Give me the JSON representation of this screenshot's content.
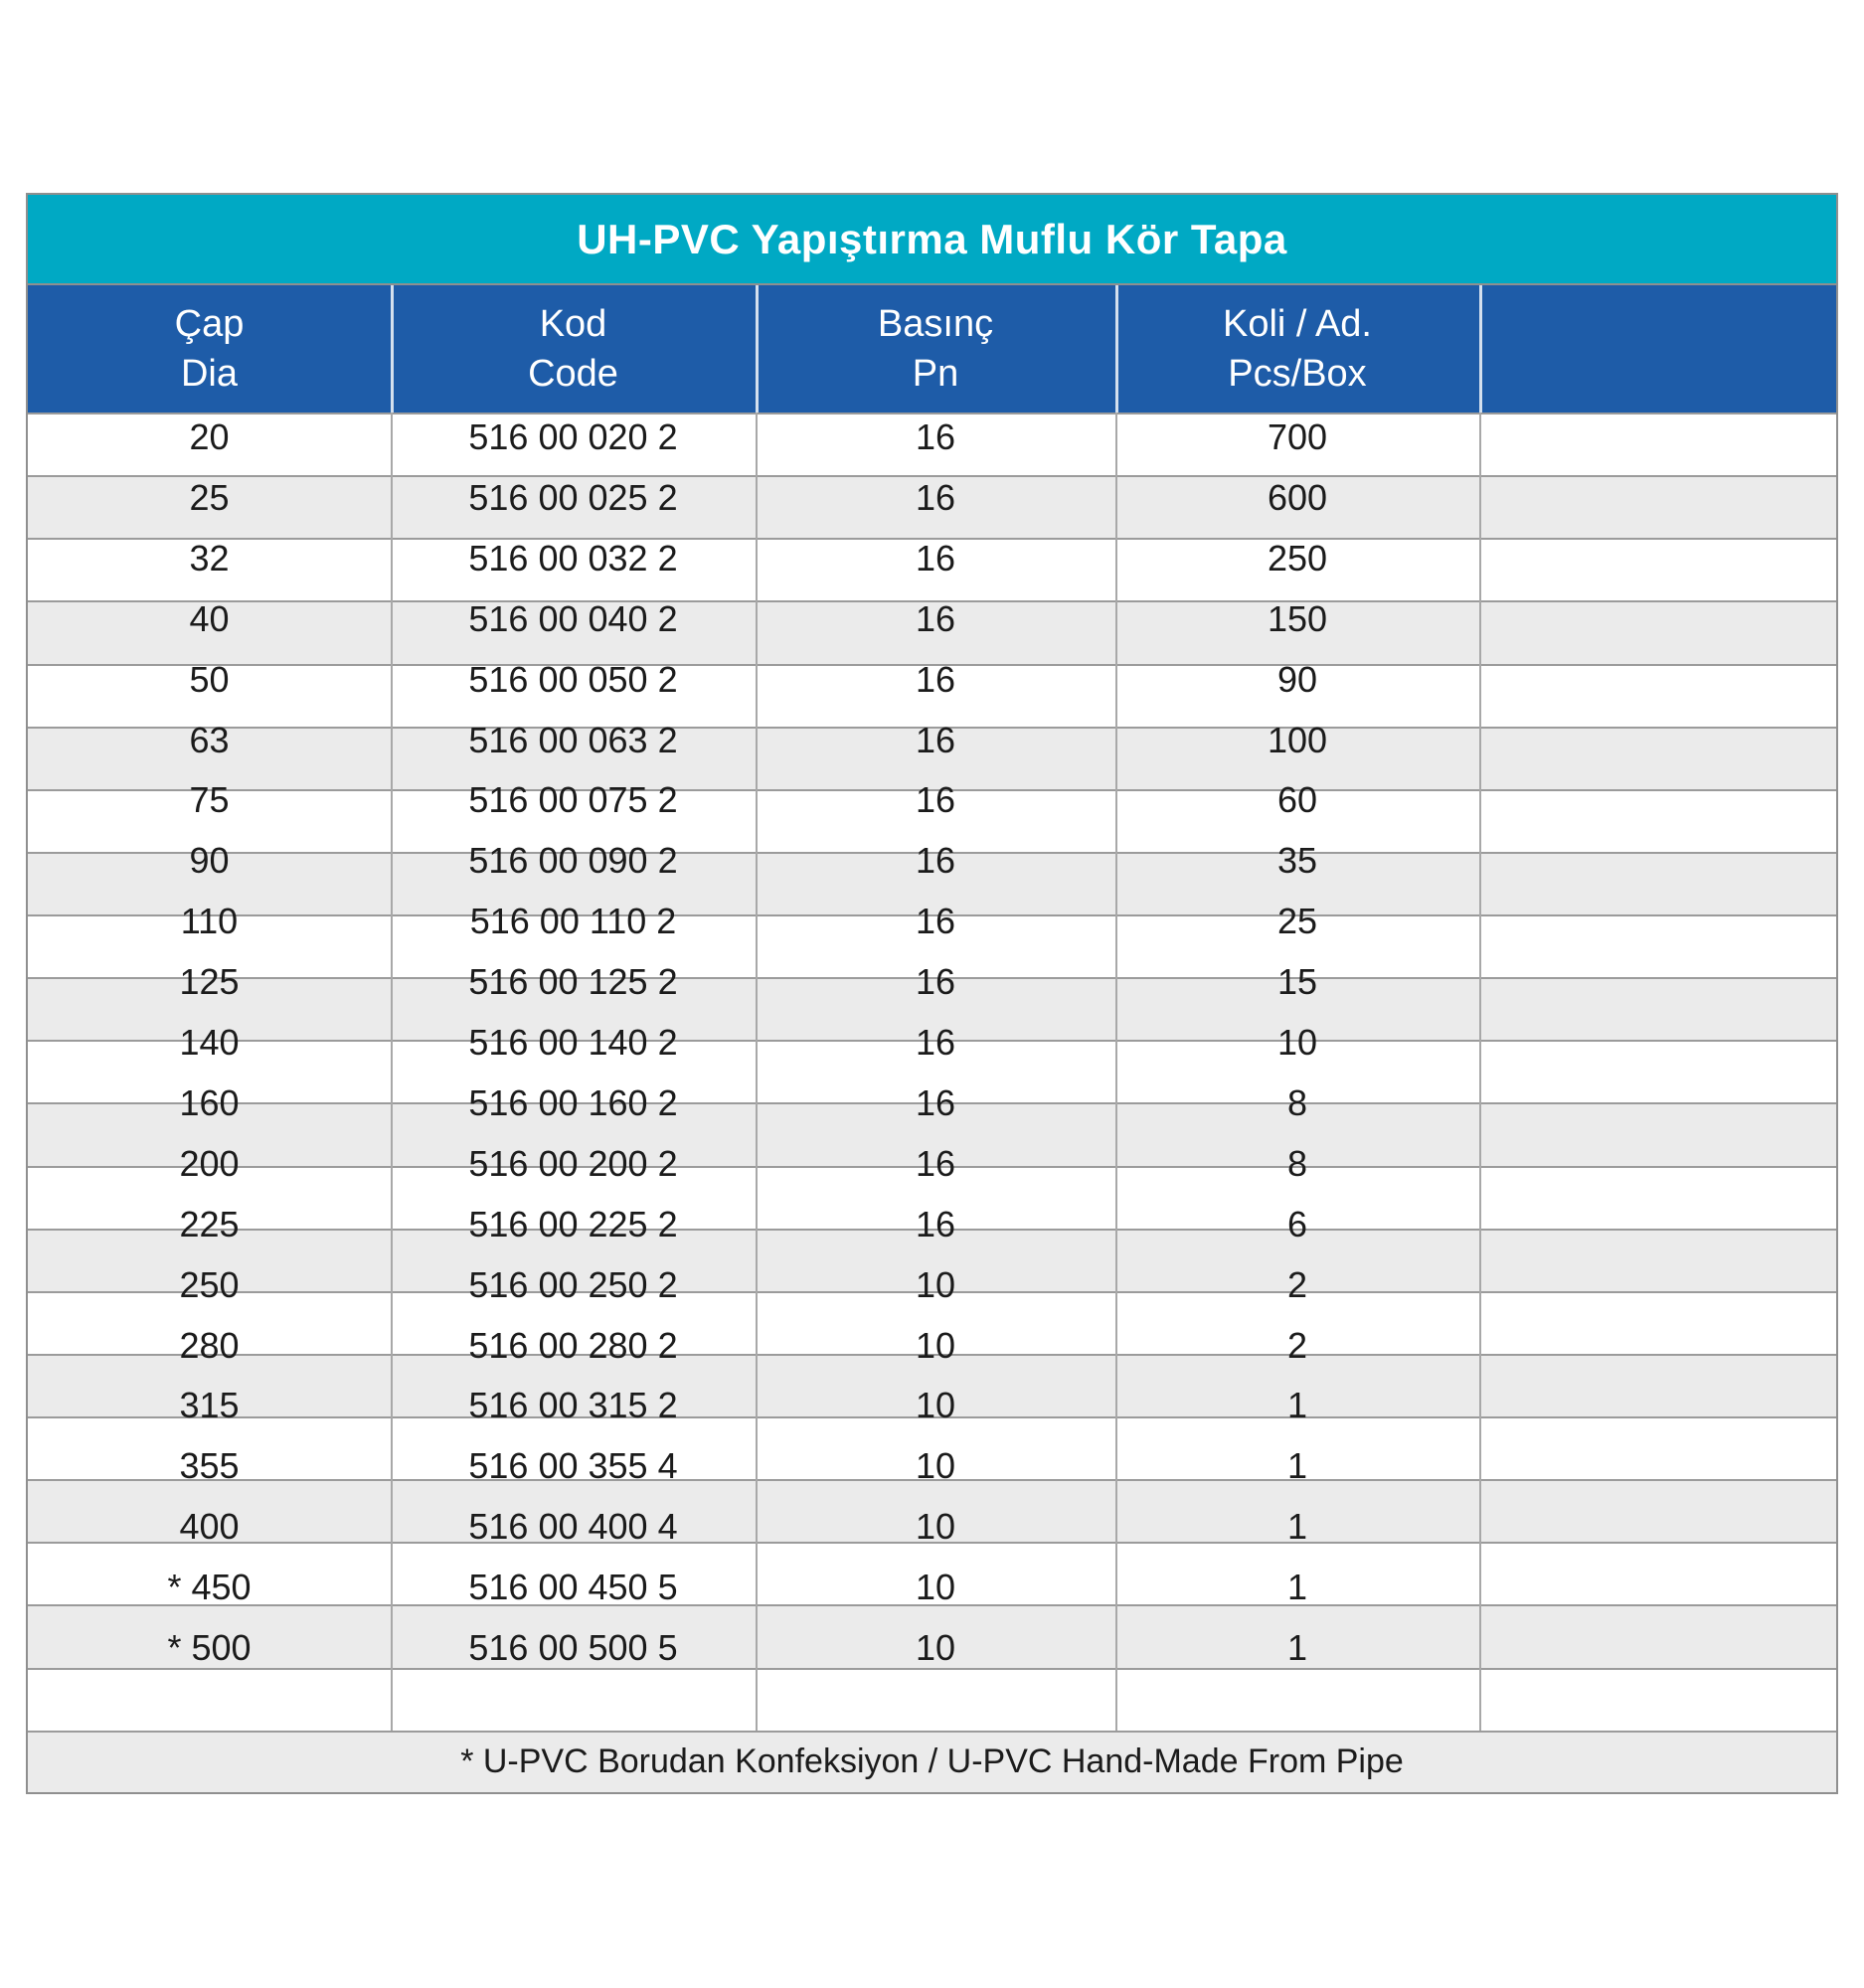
{
  "title": "UH-PVC Yapıştırma Muflu Kör Tapa",
  "columns": [
    {
      "tr": "Çap",
      "en": "Dia"
    },
    {
      "tr": "Kod",
      "en": "Code"
    },
    {
      "tr": "Basınç",
      "en": "Pn"
    },
    {
      "tr": "Koli / Ad.",
      "en": "Pcs/Box"
    },
    {
      "tr": "",
      "en": ""
    }
  ],
  "rows": [
    {
      "dia": "20",
      "code": "516 00 020 2",
      "pn": "16",
      "box": "700"
    },
    {
      "dia": "25",
      "code": "516 00 025 2",
      "pn": "16",
      "box": "600"
    },
    {
      "dia": "32",
      "code": "516 00 032 2",
      "pn": "16",
      "box": "250"
    },
    {
      "dia": "40",
      "code": "516 00 040 2",
      "pn": "16",
      "box": "150"
    },
    {
      "dia": "50",
      "code": "516 00 050 2",
      "pn": "16",
      "box": "90"
    },
    {
      "dia": "63",
      "code": "516 00 063 2",
      "pn": "16",
      "box": "100"
    },
    {
      "dia": "75",
      "code": "516 00 075 2",
      "pn": "16",
      "box": "60"
    },
    {
      "dia": "90",
      "code": "516 00 090 2",
      "pn": "16",
      "box": "35"
    },
    {
      "dia": "110",
      "code": "516 00 110 2",
      "pn": "16",
      "box": "25"
    },
    {
      "dia": "125",
      "code": "516 00 125 2",
      "pn": "16",
      "box": "15"
    },
    {
      "dia": "140",
      "code": "516 00 140 2",
      "pn": "16",
      "box": "10"
    },
    {
      "dia": "160",
      "code": "516 00 160 2",
      "pn": "16",
      "box": "8"
    },
    {
      "dia": "200",
      "code": "516 00 200 2",
      "pn": "16",
      "box": "8"
    },
    {
      "dia": "225",
      "code": "516 00 225 2",
      "pn": "16",
      "box": "6"
    },
    {
      "dia": "250",
      "code": "516 00 250 2",
      "pn": "10",
      "box": "2"
    },
    {
      "dia": "280",
      "code": "516 00 280 2",
      "pn": "10",
      "box": "2"
    },
    {
      "dia": "315",
      "code": "516 00 315 2",
      "pn": "10",
      "box": "1"
    },
    {
      "dia": "355",
      "code": "516 00 355 4",
      "pn": "10",
      "box": "1"
    },
    {
      "dia": "400",
      "code": "516 00 400 4",
      "pn": "10",
      "box": "1"
    },
    {
      "dia": "* 450",
      "code": "516 00 450 5",
      "pn": "10",
      "box": "1"
    },
    {
      "dia": "* 500",
      "code": "516 00 500 5",
      "pn": "10",
      "box": "1"
    }
  ],
  "footnote": "* U-PVC Borudan Konfeksiyon / U-PVC Hand-Made From Pipe",
  "colors": {
    "title_bg": "#00A9C4",
    "header_bg": "#1E5CA8",
    "stripe_bg": "#EBEBEB",
    "grid_line": "#9B9B9B",
    "grid_line_dark": "#8F8F8F",
    "grid_line_vertical": "#A8A8A8",
    "header_text": "#FFFFFF",
    "body_text": "#1B1B1B"
  }
}
